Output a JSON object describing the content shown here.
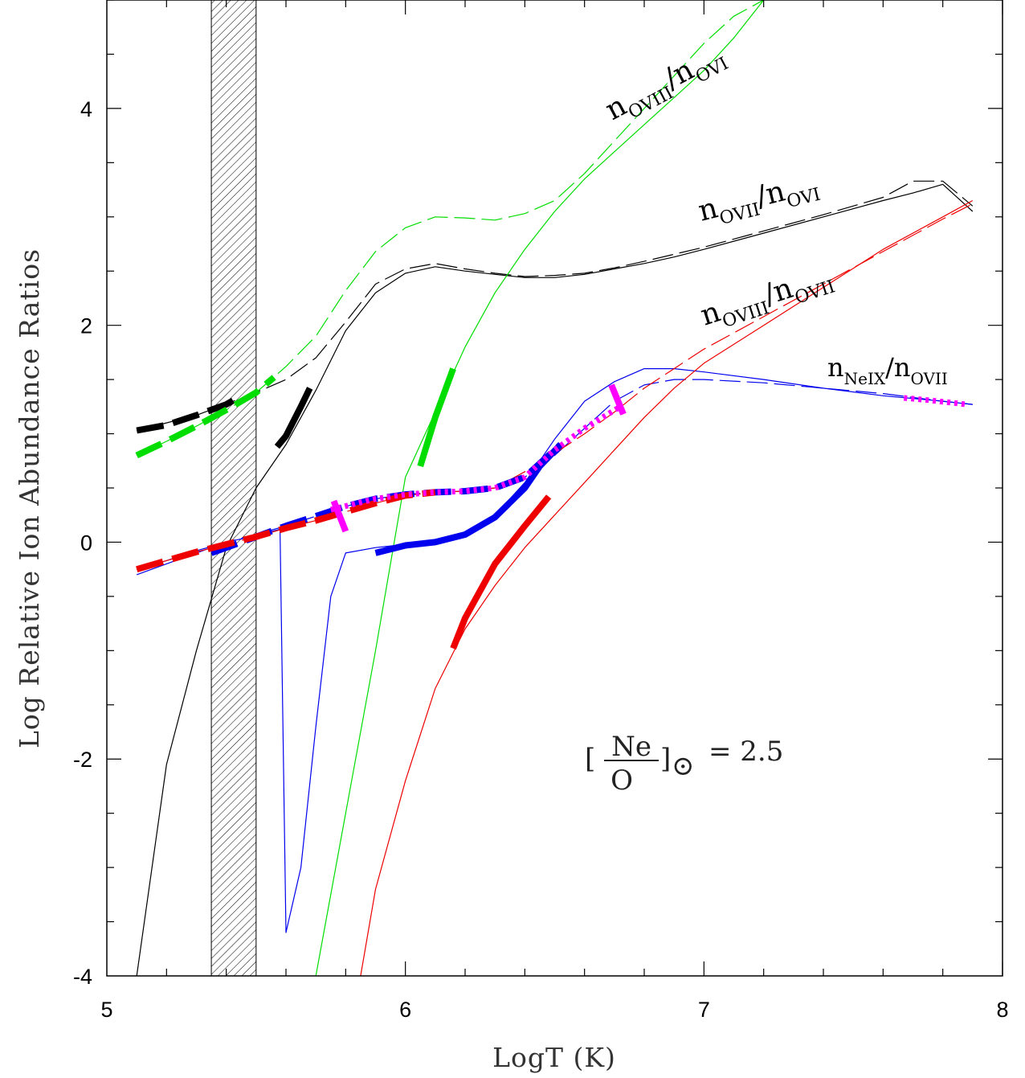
{
  "chart_data": {
    "type": "line",
    "xlabel": "LogT (K)",
    "ylabel": "Log Relative Ion Abundance Ratios",
    "xlim": [
      5,
      8
    ],
    "ylim": [
      -4,
      5
    ],
    "x_ticks": [
      "5",
      "6",
      "7",
      "8"
    ],
    "y_ticks": [
      "-4",
      "-2",
      "0",
      "2",
      "4"
    ],
    "shaded_band": [
      5.35,
      5.5
    ],
    "annotation": {
      "open": "[",
      "num": "Ne",
      "den": "O",
      "close": "]",
      "sun": "⊙",
      "eq": "= 2.5"
    },
    "curve_labels": [
      {
        "base": "n",
        "sub": "OVIII",
        "sep": "/",
        "base2": "n",
        "sub2": "OVI"
      },
      {
        "base": "n",
        "sub": "OVII",
        "sep": "/",
        "base2": "n",
        "sub2": "OVI"
      },
      {
        "base": "n",
        "sub": "OVIII",
        "sep": "/",
        "base2": "n",
        "sub2": "OVII"
      },
      {
        "base": "n",
        "sub": "NeIX",
        "sep": "/",
        "base2": "n",
        "sub2": "OVII"
      }
    ],
    "series": [
      {
        "color": "#000000",
        "style": "solid",
        "x": [
          5.1,
          5.2,
          5.3,
          5.4,
          5.5,
          5.6,
          5.7,
          5.8,
          5.9,
          6.0,
          6.1,
          6.2,
          6.3,
          6.4,
          6.5,
          6.6,
          6.7,
          6.8,
          6.9,
          7.0,
          7.2,
          7.4,
          7.6,
          7.7,
          7.8,
          7.9
        ],
        "y": [
          -4.0,
          -2.05,
          -1.0,
          -0.05,
          0.5,
          0.9,
          1.4,
          1.95,
          2.3,
          2.48,
          2.54,
          2.5,
          2.47,
          2.44,
          2.44,
          2.47,
          2.52,
          2.57,
          2.63,
          2.7,
          2.85,
          3.0,
          3.15,
          3.22,
          3.3,
          3.05
        ]
      },
      {
        "color": "#000000",
        "style": "dashed",
        "x": [
          5.1,
          5.3,
          5.5,
          5.6,
          5.7,
          5.8,
          5.9,
          6.0,
          6.1,
          6.2,
          6.3,
          6.4,
          6.5,
          6.6,
          6.7,
          6.8,
          7.0,
          7.2,
          7.4,
          7.6,
          7.7,
          7.8,
          7.9
        ],
        "y": [
          1.03,
          1.17,
          1.38,
          1.5,
          1.7,
          2.03,
          2.38,
          2.52,
          2.57,
          2.52,
          2.48,
          2.45,
          2.46,
          2.48,
          2.53,
          2.59,
          2.72,
          2.87,
          3.02,
          3.18,
          3.33,
          3.33,
          3.1
        ]
      },
      {
        "color": "#00dd00",
        "style": "solid",
        "x": [
          5.7,
          5.8,
          5.9,
          6.0,
          6.1,
          6.2,
          6.3,
          6.4,
          6.5,
          6.6,
          6.7,
          6.8,
          6.9,
          7.0,
          7.1,
          7.2
        ],
        "y": [
          -4.0,
          -2.5,
          -1.0,
          0.6,
          1.2,
          1.8,
          2.3,
          2.7,
          3.05,
          3.35,
          3.6,
          3.85,
          4.1,
          4.35,
          4.65,
          5.0
        ]
      },
      {
        "color": "#00dd00",
        "style": "dashed",
        "x": [
          5.1,
          5.2,
          5.3,
          5.4,
          5.5,
          5.6,
          5.7,
          5.8,
          5.9,
          6.0,
          6.1,
          6.2,
          6.3,
          6.4,
          6.5,
          6.6,
          6.7,
          6.8,
          6.9,
          7.0,
          7.1,
          7.2
        ],
        "y": [
          0.8,
          0.93,
          1.07,
          1.22,
          1.38,
          1.62,
          1.9,
          2.32,
          2.68,
          2.9,
          3.0,
          2.99,
          2.97,
          3.03,
          3.15,
          3.4,
          3.7,
          4.0,
          4.3,
          4.6,
          4.85,
          5.0
        ]
      },
      {
        "color": "#0000ee",
        "style": "solid",
        "x": [
          5.1,
          5.2,
          5.3,
          5.4,
          5.5,
          5.58,
          5.6,
          5.65,
          5.7,
          5.75,
          5.8,
          5.9,
          6.0,
          6.1,
          6.2,
          6.3,
          6.4,
          6.5,
          6.6,
          6.7,
          6.8,
          6.9,
          7.0,
          7.2,
          7.4,
          7.6,
          7.8,
          7.9
        ],
        "y": [
          -0.3,
          -0.2,
          -0.1,
          0.0,
          0.06,
          0.12,
          -3.6,
          -3.0,
          -1.7,
          -0.5,
          -0.1,
          -0.05,
          -0.02,
          0.02,
          0.08,
          0.25,
          0.55,
          0.95,
          1.3,
          1.48,
          1.6,
          1.6,
          1.57,
          1.5,
          1.42,
          1.35,
          1.3,
          1.27
        ]
      },
      {
        "color": "#0000ee",
        "style": "dashed",
        "x": [
          5.1,
          5.2,
          5.3,
          5.4,
          5.5,
          5.6,
          5.7,
          5.8,
          5.9,
          6.0,
          6.1,
          6.2,
          6.3,
          6.4,
          6.5,
          6.6,
          6.7,
          6.8,
          6.9,
          7.0,
          7.2,
          7.4,
          7.6,
          7.8,
          7.9
        ],
        "y": [
          -0.25,
          -0.17,
          -0.08,
          0.0,
          0.07,
          0.15,
          0.24,
          0.33,
          0.4,
          0.44,
          0.46,
          0.47,
          0.5,
          0.6,
          0.8,
          1.05,
          1.3,
          1.45,
          1.5,
          1.5,
          1.47,
          1.42,
          1.37,
          1.3,
          1.27
        ]
      },
      {
        "color": "#ee0000",
        "style": "solid",
        "x": [
          5.85,
          5.9,
          6.0,
          6.1,
          6.2,
          6.3,
          6.4,
          6.5,
          6.6,
          6.7,
          6.8,
          6.9,
          7.0,
          7.2,
          7.4,
          7.6,
          7.8,
          7.9
        ],
        "y": [
          -4.0,
          -3.2,
          -2.2,
          -1.35,
          -0.8,
          -0.4,
          -0.05,
          0.25,
          0.55,
          0.85,
          1.15,
          1.42,
          1.65,
          2.0,
          2.35,
          2.7,
          3.0,
          3.15
        ]
      },
      {
        "color": "#ee0000",
        "style": "dashed",
        "x": [
          5.1,
          5.2,
          5.3,
          5.4,
          5.5,
          5.6,
          5.7,
          5.8,
          5.9,
          6.0,
          6.1,
          6.2,
          6.3,
          6.4,
          6.5,
          6.6,
          6.7,
          6.8,
          6.9,
          7.0,
          7.2,
          7.4,
          7.6,
          7.8,
          7.9
        ],
        "y": [
          -0.25,
          -0.17,
          -0.09,
          -0.02,
          0.05,
          0.13,
          0.2,
          0.28,
          0.36,
          0.43,
          0.46,
          0.47,
          0.5,
          0.65,
          0.82,
          1.0,
          1.2,
          1.42,
          1.6,
          1.78,
          2.08,
          2.38,
          2.68,
          2.98,
          3.12
        ]
      }
    ],
    "thick_segments": [
      {
        "color": "#000000",
        "style": "dashed",
        "x": [
          5.1,
          5.2,
          5.3,
          5.4,
          5.45
        ],
        "y": [
          1.03,
          1.08,
          1.17,
          1.27,
          1.35
        ]
      },
      {
        "color": "#000000",
        "style": "solid",
        "x": [
          5.57,
          5.6,
          5.65,
          5.68
        ],
        "y": [
          0.88,
          0.98,
          1.25,
          1.42
        ]
      },
      {
        "color": "#00dd00",
        "style": "dashed",
        "x": [
          5.1,
          5.2,
          5.3,
          5.4,
          5.5,
          5.56
        ],
        "y": [
          0.8,
          0.93,
          1.07,
          1.22,
          1.38,
          1.52
        ]
      },
      {
        "color": "#00dd00",
        "style": "solid",
        "x": [
          6.05,
          6.1,
          6.16
        ],
        "y": [
          0.7,
          1.15,
          1.6
        ]
      },
      {
        "color": "#0000ee",
        "style": "dashed",
        "x": [
          5.35,
          5.4,
          5.5,
          5.6,
          5.7,
          5.8,
          5.9,
          6.0,
          6.1,
          6.2,
          6.3,
          6.4,
          6.52
        ],
        "y": [
          -0.1,
          -0.05,
          0.05,
          0.15,
          0.24,
          0.33,
          0.4,
          0.44,
          0.46,
          0.47,
          0.5,
          0.6,
          0.9
        ]
      },
      {
        "color": "#0000ee",
        "style": "solid",
        "x": [
          5.9,
          6.0,
          6.1,
          6.2,
          6.3,
          6.4,
          6.45,
          6.52
        ],
        "y": [
          -0.1,
          -0.03,
          0.0,
          0.07,
          0.23,
          0.5,
          0.7,
          0.9
        ]
      },
      {
        "color": "#ee0000",
        "style": "dashed",
        "x": [
          5.1,
          5.2,
          5.3,
          5.4,
          5.5,
          5.6,
          5.7,
          5.8,
          5.9,
          6.0,
          6.1
        ],
        "y": [
          -0.25,
          -0.17,
          -0.09,
          -0.02,
          0.05,
          0.13,
          0.2,
          0.28,
          0.36,
          0.43,
          0.46
        ]
      },
      {
        "color": "#ee0000",
        "style": "solid",
        "x": [
          6.16,
          6.2,
          6.3,
          6.4,
          6.48
        ],
        "y": [
          -0.98,
          -0.7,
          -0.2,
          0.15,
          0.42
        ]
      },
      {
        "color": "#ff00ff",
        "style": "dotted",
        "x": [
          5.75,
          5.9,
          6.0,
          6.1,
          6.2,
          6.3,
          6.4,
          6.5,
          6.6,
          6.72
        ],
        "y": [
          0.3,
          0.4,
          0.44,
          0.46,
          0.47,
          0.5,
          0.6,
          0.85,
          1.05,
          1.25
        ]
      },
      {
        "color": "#ff00ff",
        "style": "dotted",
        "x": [
          7.67,
          7.75,
          7.85,
          7.88
        ],
        "y": [
          1.33,
          1.31,
          1.28,
          1.27
        ]
      }
    ],
    "tick_marks": [
      {
        "color": "#ff00ff",
        "x": [
          5.76,
          5.8
        ],
        "y": [
          0.38,
          0.1
        ]
      },
      {
        "color": "#ff00ff",
        "x": [
          6.69,
          6.73
        ],
        "y": [
          1.45,
          1.18
        ]
      }
    ]
  }
}
